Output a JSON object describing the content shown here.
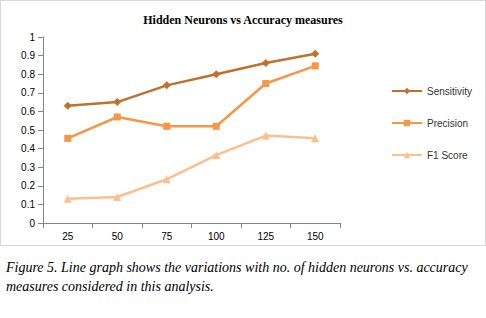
{
  "chart_data": {
    "type": "line",
    "title": "Hidden Neurons vs Accuracy measures",
    "categories": [
      "25",
      "50",
      "75",
      "100",
      "125",
      "150"
    ],
    "series": [
      {
        "name": "Sensitivity",
        "color": "#c0712b",
        "marker": "diamond",
        "values": [
          0.63,
          0.65,
          0.74,
          0.8,
          0.86,
          0.91
        ]
      },
      {
        "name": "Precision",
        "color": "#f79646",
        "marker": "square",
        "values": [
          0.455,
          0.57,
          0.52,
          0.52,
          0.75,
          0.845
        ]
      },
      {
        "name": "F1 Score",
        "color": "#fac090",
        "marker": "triangle",
        "values": [
          0.13,
          0.14,
          0.235,
          0.365,
          0.47,
          0.455
        ]
      }
    ],
    "ylim": [
      0,
      1
    ],
    "yticks": [
      0,
      0.1,
      0.2,
      0.3,
      0.4,
      0.5,
      0.6,
      0.7,
      0.8,
      0.9,
      1
    ],
    "grid": false,
    "legend": "right",
    "caption": "Figure 5. Line graph shows the variations with no. of hidden neurons vs. accuracy measures considered in this analysis."
  }
}
